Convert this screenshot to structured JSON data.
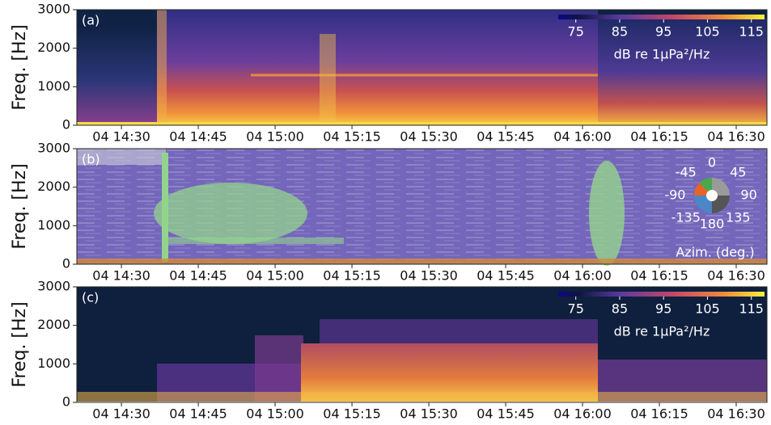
{
  "chart_data": [
    {
      "type": "spectrogram",
      "label": "(a)",
      "ylabel": "Freq. [Hz]",
      "ylim": [
        0,
        3000
      ],
      "yticks": [
        0,
        1000,
        2000,
        3000
      ],
      "xlim": [
        861.3,
        996
      ],
      "xticks": [
        {
          "value": 870,
          "label": "04 14:30"
        },
        {
          "value": 885,
          "label": "04 14:45"
        },
        {
          "value": 900,
          "label": "04 15:00"
        },
        {
          "value": 915,
          "label": "04 15:15"
        },
        {
          "value": 930,
          "label": "04 15:30"
        },
        {
          "value": 945,
          "label": "04 15:45"
        },
        {
          "value": 960,
          "label": "04 16:00"
        },
        {
          "value": 975,
          "label": "04 16:15"
        },
        {
          "value": 990,
          "label": "04 16:30"
        }
      ],
      "colorbar": {
        "lim": [
          71,
          118
        ],
        "ticks": [
          75,
          85,
          95,
          105,
          115
        ],
        "label": "dB re 1μPa²/Hz"
      }
    },
    {
      "type": "azimuthogram",
      "label": "(b)",
      "ylabel": "Freq. [Hz]",
      "ylim": [
        0,
        3000
      ],
      "yticks": [
        0,
        1000,
        2000,
        3000
      ],
      "xlim": [
        861.3,
        996
      ],
      "xticks": [
        {
          "value": 870,
          "label": "04 14:30"
        },
        {
          "value": 885,
          "label": "04 14:45"
        },
        {
          "value": 900,
          "label": "04 15:00"
        },
        {
          "value": 915,
          "label": "04 15:15"
        },
        {
          "value": 930,
          "label": "04 15:30"
        },
        {
          "value": 945,
          "label": "04 15:45"
        },
        {
          "value": 960,
          "label": "04 16:00"
        },
        {
          "value": 975,
          "label": "04 16:15"
        },
        {
          "value": 990,
          "label": "04 16:30"
        }
      ],
      "azimuth": {
        "ticks": [
          0,
          45,
          90,
          135,
          180,
          -135,
          -90,
          -45
        ],
        "label": "Azim. (deg.)"
      }
    },
    {
      "type": "spectrogram",
      "label": "(c)",
      "ylabel": "Freq. [Hz]",
      "ylim": [
        0,
        3000
      ],
      "yticks": [
        0,
        1000,
        2000,
        3000
      ],
      "xlim": [
        861.3,
        996
      ],
      "xticks": [
        {
          "value": 870,
          "label": "04 14:30"
        },
        {
          "value": 885,
          "label": "04 14:45"
        },
        {
          "value": 900,
          "label": "04 15:00"
        },
        {
          "value": 915,
          "label": "04 15:15"
        },
        {
          "value": 930,
          "label": "04 15:30"
        },
        {
          "value": 945,
          "label": "04 15:45"
        },
        {
          "value": 960,
          "label": "04 16:00"
        },
        {
          "value": 975,
          "label": "04 16:15"
        },
        {
          "value": 990,
          "label": "04 16:30"
        }
      ],
      "colorbar": {
        "lim": [
          71,
          118
        ],
        "ticks": [
          75,
          85,
          95,
          105,
          115
        ],
        "label": "dB re 1μPa²/Hz"
      }
    }
  ]
}
